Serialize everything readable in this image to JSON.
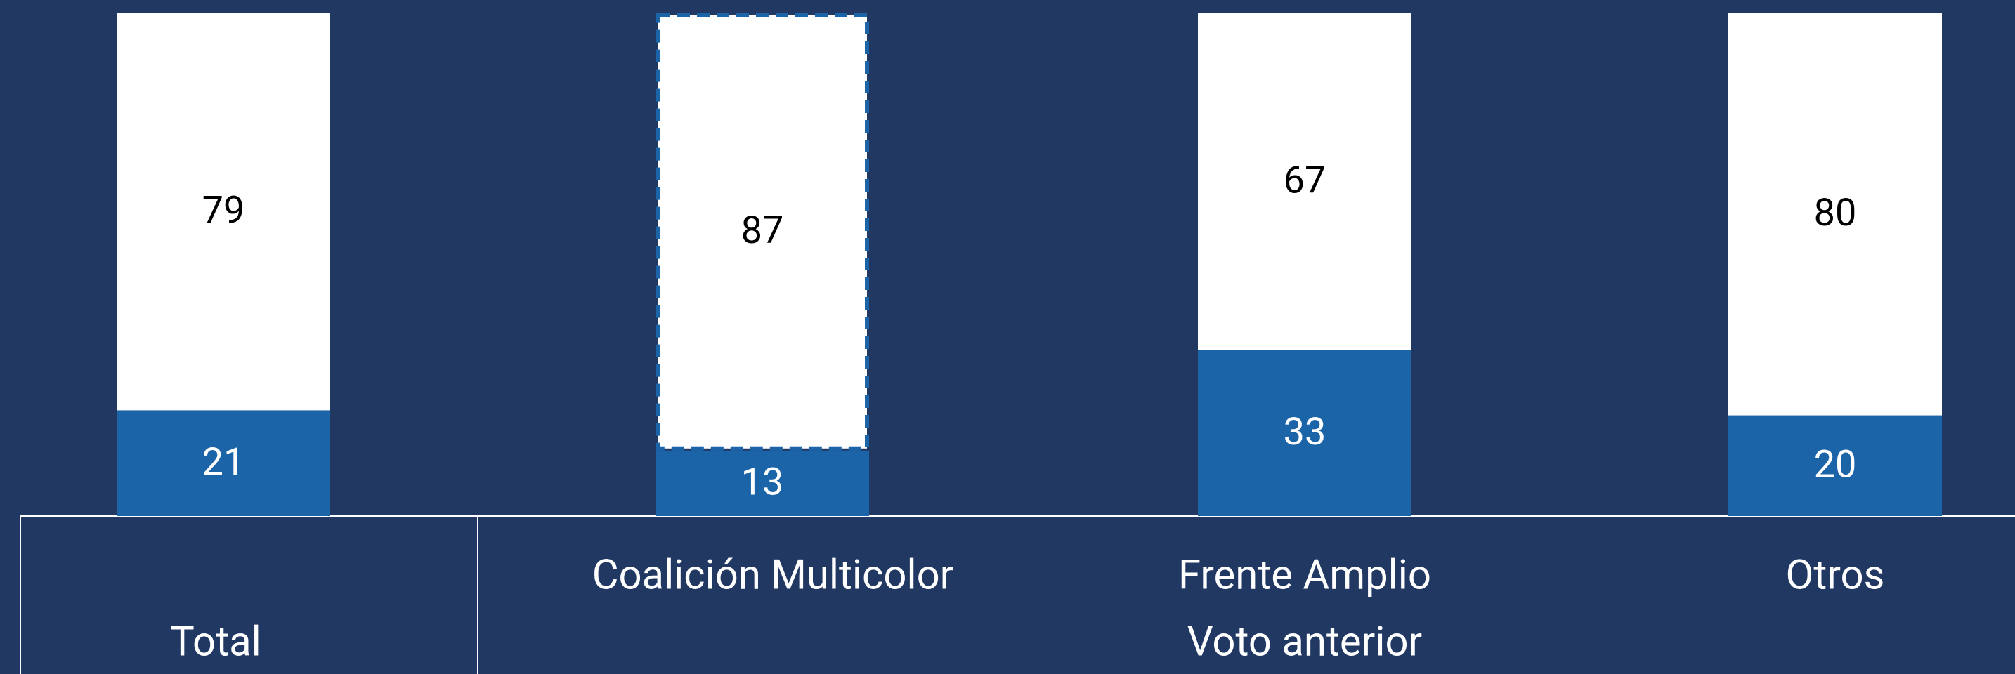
{
  "chart_data": {
    "type": "stacked_bar",
    "categories": [
      "Total",
      "Coalición Multicolor",
      "Frente Amplio",
      "Otros"
    ],
    "group_label": "Voto anterior",
    "series": [
      {
        "color": "#1c64a8",
        "label_color": "#ffffff",
        "values": [
          21,
          13,
          33,
          20
        ]
      },
      {
        "color": "#ffffff",
        "label_color": "#000000",
        "values": [
          79,
          87,
          67,
          80
        ]
      }
    ],
    "ylim": [
      0,
      100
    ]
  }
}
